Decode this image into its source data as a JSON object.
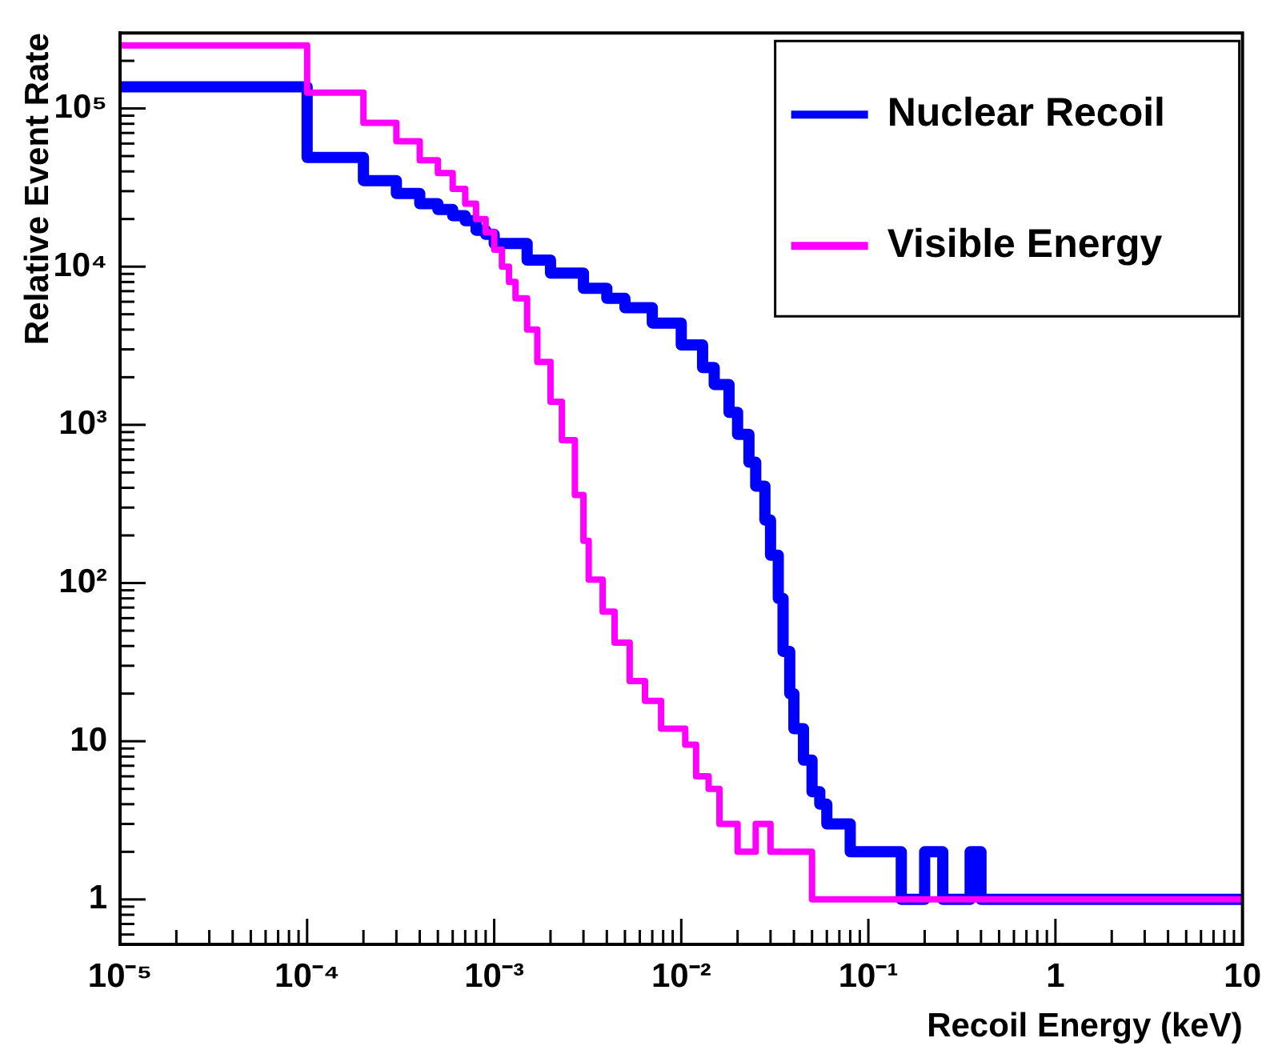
{
  "chart_data": {
    "type": "step",
    "xlabel": "Recoil Energy (keV)",
    "ylabel": "Relative Event Rate",
    "log": "xy",
    "grid": false,
    "legend": "top right",
    "marker": "none",
    "line_style": "solid",
    "xlim": [
      1e-05,
      10
    ],
    "ylim": [
      0.52,
      300000
    ],
    "xticks": [
      {
        "value": 1e-05,
        "label": "10⁻⁵"
      },
      {
        "value": 2e-05,
        "label": null
      },
      {
        "value": 3e-05,
        "label": null
      },
      {
        "value": 4e-05,
        "label": null
      },
      {
        "value": 5e-05,
        "label": null
      },
      {
        "value": 6e-05,
        "label": null
      },
      {
        "value": 7e-05,
        "label": null
      },
      {
        "value": 8e-05,
        "label": null
      },
      {
        "value": 9e-05,
        "label": null
      },
      {
        "value": 0.0001,
        "label": "10⁻⁴"
      },
      {
        "value": 0.0002,
        "label": null
      },
      {
        "value": 0.0003,
        "label": null
      },
      {
        "value": 0.0004,
        "label": null
      },
      {
        "value": 0.0005,
        "label": null
      },
      {
        "value": 0.0006,
        "label": null
      },
      {
        "value": 0.0007,
        "label": null
      },
      {
        "value": 0.0008,
        "label": null
      },
      {
        "value": 0.0009,
        "label": null
      },
      {
        "value": 0.001,
        "label": "10⁻³"
      },
      {
        "value": 0.002,
        "label": null
      },
      {
        "value": 0.003,
        "label": null
      },
      {
        "value": 0.004,
        "label": null
      },
      {
        "value": 0.005,
        "label": null
      },
      {
        "value": 0.006,
        "label": null
      },
      {
        "value": 0.007,
        "label": null
      },
      {
        "value": 0.008,
        "label": null
      },
      {
        "value": 0.009,
        "label": null
      },
      {
        "value": 0.01,
        "label": "10⁻²"
      },
      {
        "value": 0.02,
        "label": null
      },
      {
        "value": 0.03,
        "label": null
      },
      {
        "value": 0.04,
        "label": null
      },
      {
        "value": 0.05,
        "label": null
      },
      {
        "value": 0.06,
        "label": null
      },
      {
        "value": 0.07,
        "label": null
      },
      {
        "value": 0.08,
        "label": null
      },
      {
        "value": 0.09,
        "label": null
      },
      {
        "value": 0.1,
        "label": "10⁻¹"
      },
      {
        "value": 0.2,
        "label": null
      },
      {
        "value": 0.3,
        "label": null
      },
      {
        "value": 0.4,
        "label": null
      },
      {
        "value": 0.5,
        "label": null
      },
      {
        "value": 0.6,
        "label": null
      },
      {
        "value": 0.7,
        "label": null
      },
      {
        "value": 0.8,
        "label": null
      },
      {
        "value": 0.9,
        "label": null
      },
      1,
      {
        "value": 2,
        "label": null
      },
      {
        "value": 3,
        "label": null
      },
      {
        "value": 4,
        "label": null
      },
      {
        "value": 5,
        "label": null
      },
      {
        "value": 6,
        "label": null
      },
      {
        "value": 7,
        "label": null
      },
      {
        "value": 8,
        "label": null
      },
      {
        "value": 9,
        "label": null
      },
      10
    ],
    "yticks": [
      {
        "value": 0.6,
        "label": null
      },
      {
        "value": 0.7,
        "label": null
      },
      {
        "value": 0.8,
        "label": null
      },
      {
        "value": 0.9,
        "label": null
      },
      1,
      {
        "value": 2,
        "label": null
      },
      {
        "value": 3,
        "label": null
      },
      {
        "value": 4,
        "label": null
      },
      {
        "value": 5,
        "label": null
      },
      {
        "value": 6,
        "label": null
      },
      {
        "value": 7,
        "label": null
      },
      {
        "value": 8,
        "label": null
      },
      {
        "value": 9,
        "label": null
      },
      10,
      {
        "value": 20,
        "label": null
      },
      {
        "value": 30,
        "label": null
      },
      {
        "value": 40,
        "label": null
      },
      {
        "value": 50,
        "label": null
      },
      {
        "value": 60,
        "label": null
      },
      {
        "value": 70,
        "label": null
      },
      {
        "value": 80,
        "label": null
      },
      {
        "value": 90,
        "label": null
      },
      {
        "value": 100,
        "label": "10²"
      },
      {
        "value": 200,
        "label": null
      },
      {
        "value": 300,
        "label": null
      },
      {
        "value": 400,
        "label": null
      },
      {
        "value": 500,
        "label": null
      },
      {
        "value": 600,
        "label": null
      },
      {
        "value": 700,
        "label": null
      },
      {
        "value": 800,
        "label": null
      },
      {
        "value": 900,
        "label": null
      },
      {
        "value": 1000,
        "label": "10³"
      },
      {
        "value": 2000,
        "label": null
      },
      {
        "value": 3000,
        "label": null
      },
      {
        "value": 4000,
        "label": null
      },
      {
        "value": 5000,
        "label": null
      },
      {
        "value": 6000,
        "label": null
      },
      {
        "value": 7000,
        "label": null
      },
      {
        "value": 8000,
        "label": null
      },
      {
        "value": 9000,
        "label": null
      },
      {
        "value": 10000,
        "label": "10⁴"
      },
      {
        "value": 20000,
        "label": null
      },
      {
        "value": 30000,
        "label": null
      },
      {
        "value": 40000,
        "label": null
      },
      {
        "value": 50000,
        "label": null
      },
      {
        "value": 60000,
        "label": null
      },
      {
        "value": 70000,
        "label": null
      },
      {
        "value": 80000,
        "label": null
      },
      {
        "value": 90000,
        "label": null
      },
      {
        "value": 100000,
        "label": "10⁵"
      },
      {
        "value": 200000,
        "label": null
      }
    ],
    "series": [
      {
        "name": "Nuclear Recoil",
        "color": "#0000ff",
        "x": [
          1e-05,
          0.0001,
          0.0002,
          0.0003,
          0.0004,
          0.0005,
          0.0006,
          0.0007,
          0.0008,
          0.0009,
          0.001,
          0.0015,
          0.002,
          0.003,
          0.004,
          0.005,
          0.007,
          0.01,
          0.013,
          0.015,
          0.018,
          0.02,
          0.023,
          0.025,
          0.028,
          0.03,
          0.033,
          0.035,
          0.038,
          0.04,
          0.045,
          0.05,
          0.055,
          0.06,
          0.07,
          0.08,
          0.09,
          0.1,
          0.12,
          0.15,
          0.2,
          0.25,
          0.3,
          0.35,
          0.4,
          0.5,
          0.6,
          0.8,
          1,
          2,
          5,
          9,
          10
        ],
        "values": [
          137000,
          49000,
          35000,
          29000,
          25000,
          23000,
          21000,
          19500,
          17000,
          16000,
          14000,
          11000,
          9100,
          7300,
          6300,
          5500,
          4400,
          3200,
          2300,
          1800,
          1200,
          870,
          580,
          410,
          250,
          150,
          80,
          37,
          20,
          12,
          7.6,
          4.8,
          4,
          3,
          3,
          2,
          2,
          2,
          2,
          1,
          2,
          1,
          1,
          2,
          1,
          1,
          1,
          1,
          1,
          1,
          1,
          1,
          1
        ]
      },
      {
        "name": "Visible Energy",
        "color": "#ff00ff",
        "x": [
          1e-05,
          0.0001,
          0.0002,
          0.0003,
          0.0004,
          0.0005,
          0.0006,
          0.0007,
          0.0008,
          0.0009,
          0.001,
          0.0011,
          0.0012,
          0.0013,
          0.0015,
          0.0017,
          0.002,
          0.0023,
          0.0027,
          0.003,
          0.0032,
          0.0038,
          0.0044,
          0.0053,
          0.0064,
          0.0078,
          0.0105,
          0.012,
          0.014,
          0.016,
          0.02,
          0.025,
          0.03,
          0.04,
          0.05,
          0.07,
          0.1,
          1,
          10
        ],
        "values": [
          250000,
          126000,
          81000,
          62000,
          47000,
          39000,
          31000,
          25000,
          20000,
          16500,
          12800,
          10000,
          8000,
          6300,
          4000,
          2500,
          1400,
          800,
          360,
          185,
          105,
          66,
          42,
          24,
          18,
          12,
          9.5,
          6,
          5,
          3,
          2,
          3,
          2,
          2,
          1,
          1,
          1,
          1,
          1
        ]
      }
    ]
  }
}
